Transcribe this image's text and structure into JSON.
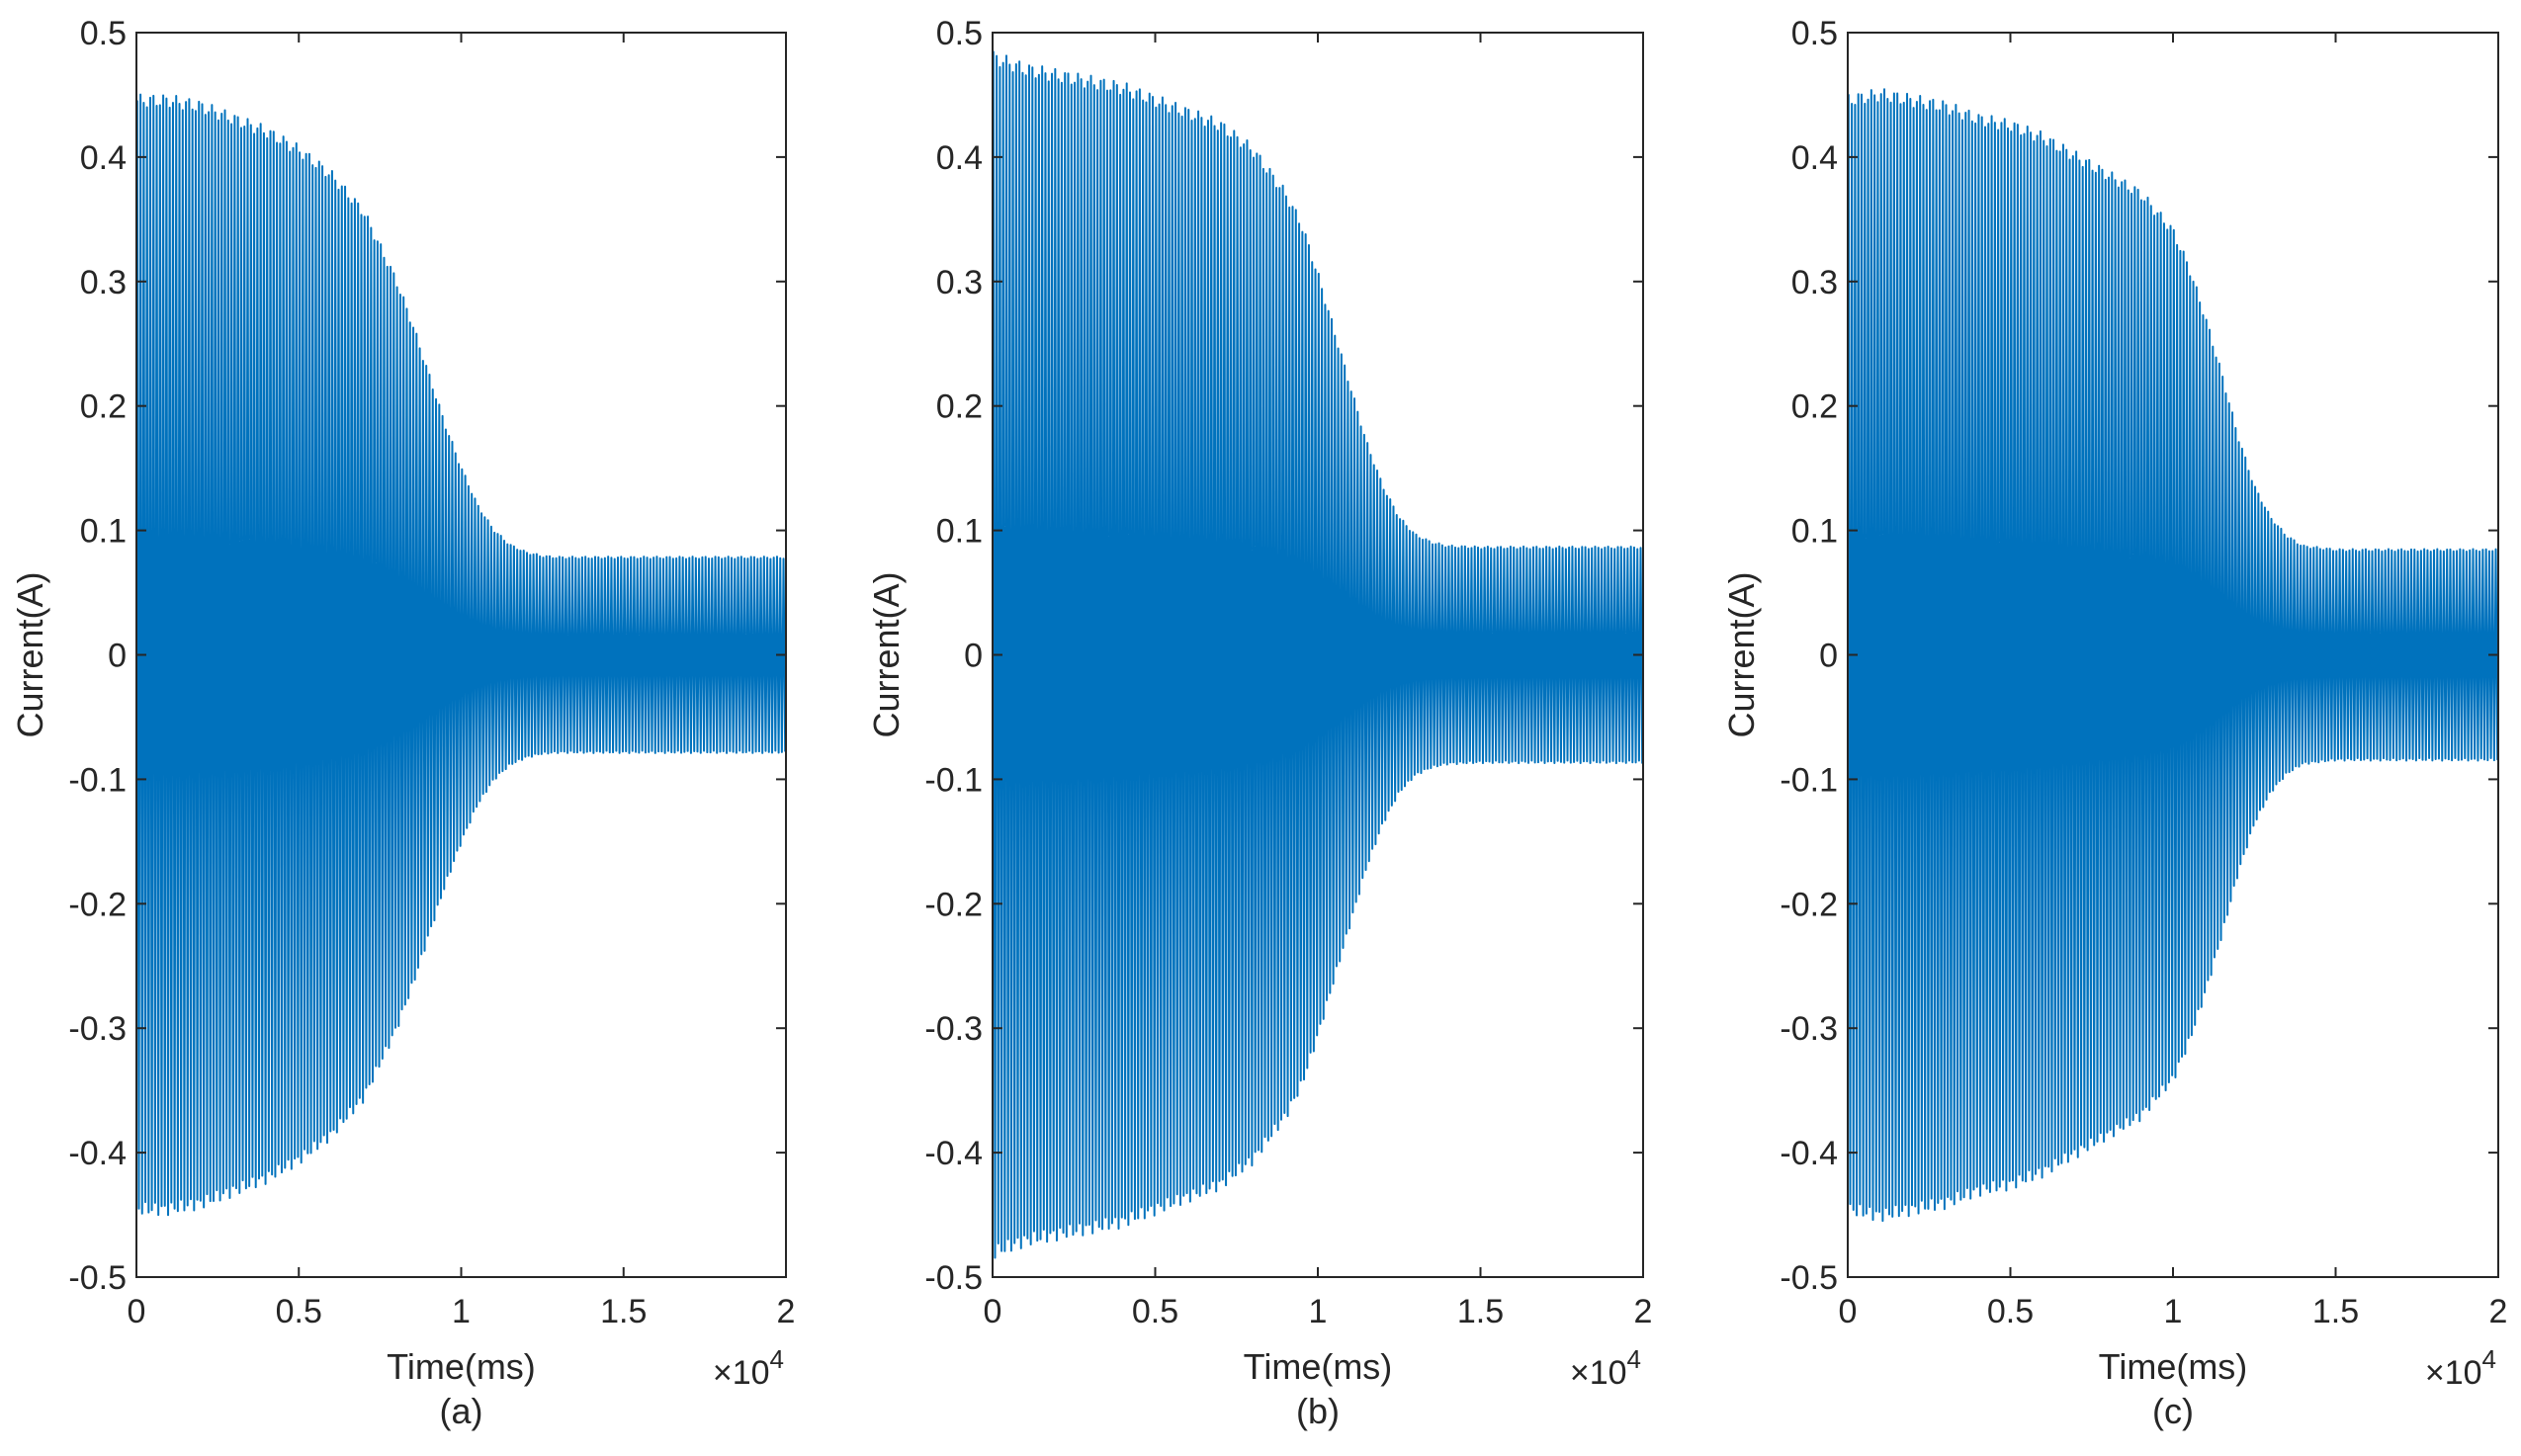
{
  "colors": {
    "series": "#0072BD",
    "axis": "#262626",
    "background": "#ffffff"
  },
  "chart_data": [
    {
      "type": "line",
      "caption": "(a)",
      "xlabel": "Time(ms)",
      "ylabel": "Current(A)",
      "x_multiplier_label": "×10",
      "x_multiplier_exp": "4",
      "xlim": [
        0,
        2
      ],
      "ylim": [
        -0.5,
        0.5
      ],
      "xticks": [
        "0",
        "0.5",
        "1",
        "1.5",
        "2"
      ],
      "yticks": [
        "-0.5",
        "-0.4",
        "-0.3",
        "-0.2",
        "-0.1",
        "0",
        "0.1",
        "0.2",
        "0.3",
        "0.4",
        "0.5"
      ],
      "grid": false,
      "series": [
        {
          "signal": "oscillating current",
          "envelope_time": [
            0,
            0.1,
            0.2,
            0.3,
            0.4,
            0.5,
            0.6,
            0.7,
            0.8,
            0.85,
            0.9,
            0.95,
            1.0,
            1.05,
            1.1,
            1.15,
            1.2,
            1.25,
            1.3,
            1.5,
            2.0
          ],
          "envelope_amplitude": [
            0.445,
            0.445,
            0.44,
            0.43,
            0.42,
            0.405,
            0.385,
            0.355,
            0.3,
            0.265,
            0.225,
            0.185,
            0.15,
            0.12,
            0.1,
            0.088,
            0.082,
            0.079,
            0.078,
            0.078,
            0.078
          ],
          "cycles": 200
        }
      ]
    },
    {
      "type": "line",
      "caption": "(b)",
      "xlabel": "Time(ms)",
      "ylabel": "Current(A)",
      "x_multiplier_label": "×10",
      "x_multiplier_exp": "4",
      "xlim": [
        0,
        2
      ],
      "ylim": [
        -0.5,
        0.5
      ],
      "xticks": [
        "0",
        "0.5",
        "1",
        "1.5",
        "2"
      ],
      "yticks": [
        "-0.5",
        "-0.4",
        "-0.3",
        "-0.2",
        "-0.1",
        "0",
        "0.1",
        "0.2",
        "0.3",
        "0.4",
        "0.5"
      ],
      "grid": false,
      "series": [
        {
          "signal": "oscillating current",
          "envelope_time": [
            0,
            0.1,
            0.2,
            0.3,
            0.4,
            0.5,
            0.6,
            0.7,
            0.8,
            0.9,
            0.95,
            1.0,
            1.05,
            1.1,
            1.15,
            1.2,
            1.25,
            1.3,
            1.35,
            1.4,
            1.5,
            2.0
          ],
          "envelope_amplitude": [
            0.48,
            0.47,
            0.465,
            0.46,
            0.455,
            0.445,
            0.435,
            0.425,
            0.405,
            0.37,
            0.345,
            0.305,
            0.26,
            0.215,
            0.17,
            0.135,
            0.11,
            0.096,
            0.09,
            0.087,
            0.086,
            0.086
          ],
          "cycles": 200
        }
      ]
    },
    {
      "type": "line",
      "caption": "(c)",
      "xlabel": "Time(ms)",
      "ylabel": "Current(A)",
      "x_multiplier_label": "×10",
      "x_multiplier_exp": "4",
      "xlim": [
        0,
        2
      ],
      "ylim": [
        -0.5,
        0.5
      ],
      "xticks": [
        "0",
        "0.5",
        "1",
        "1.5",
        "2"
      ],
      "yticks": [
        "-0.5",
        "-0.4",
        "-0.3",
        "-0.2",
        "-0.1",
        "0",
        "0.1",
        "0.2",
        "0.3",
        "0.4",
        "0.5"
      ],
      "grid": false,
      "series": [
        {
          "signal": "oscillating current",
          "envelope_time": [
            0,
            0.1,
            0.2,
            0.3,
            0.4,
            0.5,
            0.6,
            0.7,
            0.8,
            0.9,
            1.0,
            1.05,
            1.1,
            1.15,
            1.2,
            1.25,
            1.3,
            1.35,
            1.4,
            1.5,
            2.0
          ],
          "envelope_amplitude": [
            0.445,
            0.45,
            0.445,
            0.44,
            0.43,
            0.425,
            0.415,
            0.4,
            0.385,
            0.37,
            0.34,
            0.31,
            0.27,
            0.225,
            0.175,
            0.135,
            0.11,
            0.095,
            0.087,
            0.084,
            0.084
          ],
          "cycles": 200
        }
      ]
    }
  ]
}
